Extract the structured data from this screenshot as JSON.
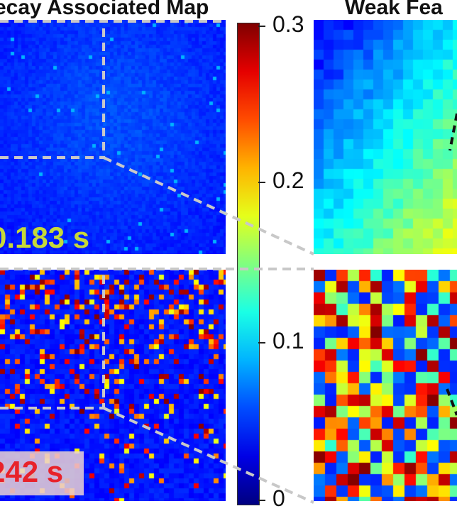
{
  "titles": {
    "left": "ecay Associated Map",
    "right": "Weak Fea"
  },
  "time_labels": {
    "top": "0.183 s",
    "bottom": "242 s"
  },
  "colorbar": {
    "ticks": [
      "0.3",
      "0.2",
      "0.1",
      "0"
    ],
    "colormap": "jet"
  },
  "colors": {
    "time_top": "#c6d83a",
    "time_bottom": "#e8222a",
    "guide_lines": "#c8c8c8"
  }
}
